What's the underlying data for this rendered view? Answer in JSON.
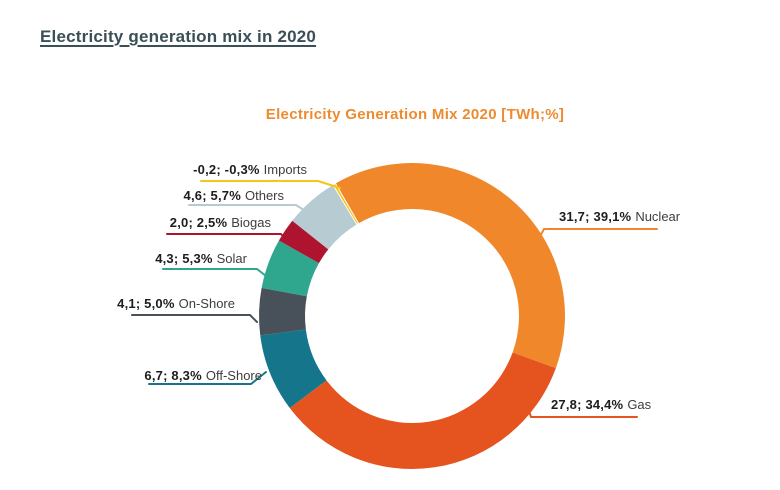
{
  "page": {
    "heading": "Electricity generation mix in 2020",
    "heading_color": "#3A4F58"
  },
  "chart_data": {
    "type": "pie",
    "subtype": "donut",
    "title": "Electricity Generation Mix 2020 [TWh;%]",
    "title_color": "#ED8B30",
    "units": "TWh;%",
    "background_color": "#FFFFFF",
    "start_angle_deg": -30,
    "direction": "clockwise",
    "slices": [
      {
        "name": "Nuclear",
        "twh": 31.7,
        "percent": 39.1,
        "value_label": "31,7; 39,1%",
        "color": "#F0882B",
        "label_side": "right"
      },
      {
        "name": "Gas",
        "twh": 27.8,
        "percent": 34.4,
        "value_label": "27,8; 34,4%",
        "color": "#E5531F",
        "label_side": "right"
      },
      {
        "name": "Off-Shore",
        "twh": 6.7,
        "percent": 8.3,
        "value_label": "6,7; 8,3%",
        "color": "#15768B",
        "label_side": "left"
      },
      {
        "name": "On-Shore",
        "twh": 4.1,
        "percent": 5.0,
        "value_label": "4,1; 5,0%",
        "color": "#485159",
        "label_side": "left"
      },
      {
        "name": "Solar",
        "twh": 4.3,
        "percent": 5.3,
        "value_label": "4,3; 5,3%",
        "color": "#2FA68E",
        "label_side": "left"
      },
      {
        "name": "Biogas",
        "twh": 2.0,
        "percent": 2.5,
        "value_label": "2,0; 2,5%",
        "color": "#AE1430",
        "label_side": "left"
      },
      {
        "name": "Others",
        "twh": 4.6,
        "percent": 5.7,
        "value_label": "4,6; 5,7%",
        "color": "#B6CBD2",
        "label_side": "left"
      },
      {
        "name": "Imports",
        "twh": -0.2,
        "percent": -0.3,
        "value_label": "-0,2; -0,3%",
        "color": "#F7C419",
        "label_side": "left"
      }
    ]
  }
}
